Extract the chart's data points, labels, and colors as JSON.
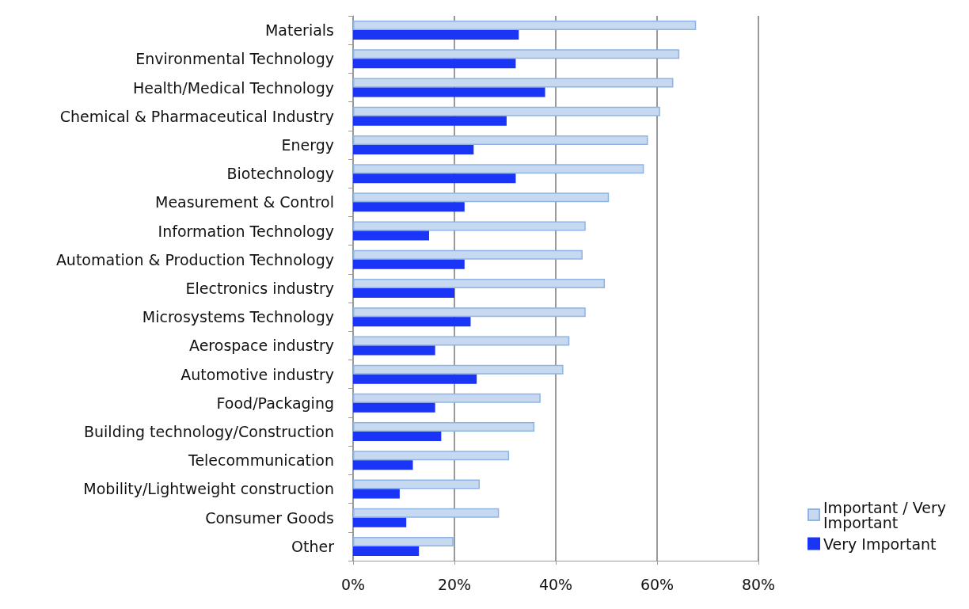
{
  "chart_data": {
    "type": "bar",
    "orientation": "horizontal",
    "categories": [
      "Materials",
      "Environmental Technology",
      "Health/Medical Technology",
      "Chemical & Pharmaceutical Industry",
      "Energy",
      "Biotechnology",
      "Measurement & Control",
      "Information Technology",
      "Automation & Production Technology",
      "Electronics industry",
      "Microsystems Technology",
      "Aerospace industry",
      "Automotive industry",
      "Food/Packaging",
      "Building technology/Construction",
      "Telecommunication",
      "Mobility/Lightweight construction",
      "Consumer Goods",
      "Other"
    ],
    "series": [
      {
        "name": "Important / Very Important",
        "color": "#c6d9f1",
        "values": [
          67.7,
          64.4,
          63.2,
          60.6,
          58.2,
          57.4,
          50.5,
          45.9,
          45.3,
          49.7,
          45.9,
          42.7,
          41.5,
          37.0,
          35.8,
          30.8,
          25.0,
          28.8,
          19.8
        ]
      },
      {
        "name": "Very Important",
        "color": "#1a35f5",
        "values": [
          32.7,
          32.1,
          37.9,
          30.3,
          23.8,
          32.1,
          22.0,
          15.0,
          22.0,
          20.0,
          23.2,
          16.2,
          24.4,
          16.2,
          17.4,
          11.8,
          9.2,
          10.5,
          13.0
        ]
      }
    ],
    "xlim": [
      0,
      80
    ],
    "xticks": [
      {
        "value": 0,
        "label": "0%"
      },
      {
        "value": 20,
        "label": "20%"
      },
      {
        "value": 40,
        "label": "40%"
      },
      {
        "value": 60,
        "label": "60%"
      },
      {
        "value": 80,
        "label": "80%"
      }
    ],
    "grid": "x",
    "legend": "right"
  }
}
